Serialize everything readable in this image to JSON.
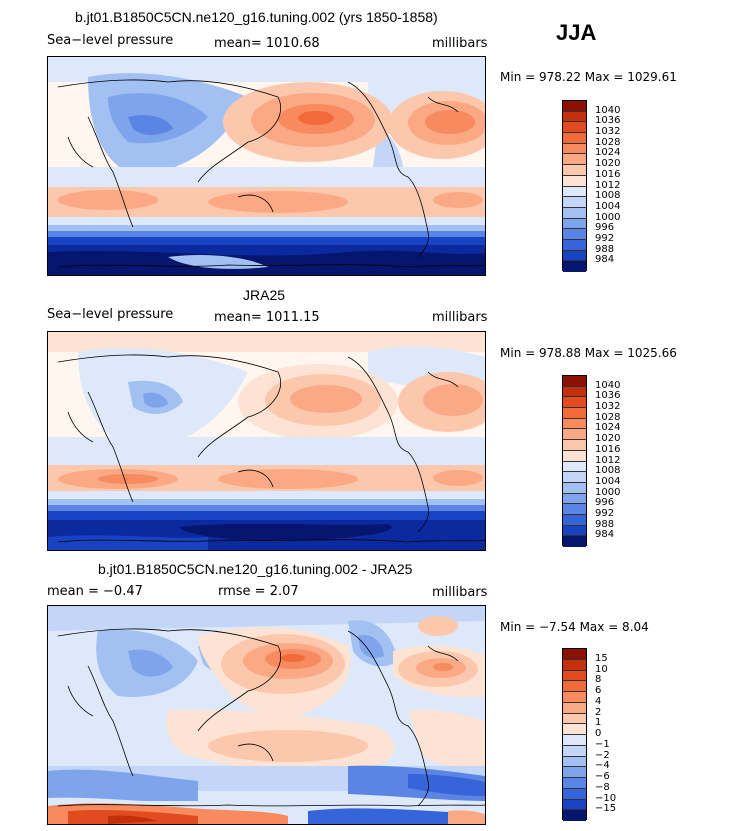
{
  "season": "JJA",
  "colors": {
    "pos": [
      "#fde3d3",
      "#fcc8ad",
      "#fba984",
      "#f78a5e",
      "#f16a3a",
      "#e24a20",
      "#c4300c",
      "#8c1003"
    ],
    "neutral": "#fff6ef",
    "neg": [
      "#dde9fb",
      "#c3d6f7",
      "#a3c0f2",
      "#7ea4ec",
      "#5b85e4",
      "#3565d8",
      "#1844c4",
      "#0c2aa0",
      "#06166e"
    ]
  },
  "panels": [
    {
      "title": "b.jt01.B1850C5CN.ne120_g16.tuning.002 (yrs 1850-1858)",
      "left_label": "Sea−level pressure",
      "mean_text": "mean= 1010.68",
      "right_label": "millibars",
      "minmax": "Min = 978.22 Max = 1029.61",
      "colorbar": [
        "1040",
        "1036",
        "1032",
        "1028",
        "1024",
        "1020",
        "1016",
        "1012",
        "1008",
        "1004",
        "1000",
        "996",
        "992",
        "988",
        "984"
      ]
    },
    {
      "title": "JRA25",
      "left_label": "Sea−level pressure",
      "mean_text": "mean= 1011.15",
      "right_label": "millibars",
      "minmax": "Min = 978.88 Max = 1025.66",
      "colorbar": [
        "1040",
        "1036",
        "1032",
        "1028",
        "1024",
        "1020",
        "1016",
        "1012",
        "1008",
        "1004",
        "1000",
        "996",
        "992",
        "988",
        "984"
      ]
    },
    {
      "title": "b.jt01.B1850C5CN.ne120_g16.tuning.002 - JRA25",
      "left_label": "mean =   −0.47",
      "mean_text": "rmse =    2.07",
      "right_label": "millibars",
      "minmax": "Min =  −7.54 Max =   8.04",
      "colorbar": [
        "15",
        "10",
        "8",
        "6",
        "4",
        "2",
        "1",
        "0",
        "−1",
        "−2",
        "−4",
        "−6",
        "−8",
        "−10",
        "−15"
      ]
    }
  ]
}
